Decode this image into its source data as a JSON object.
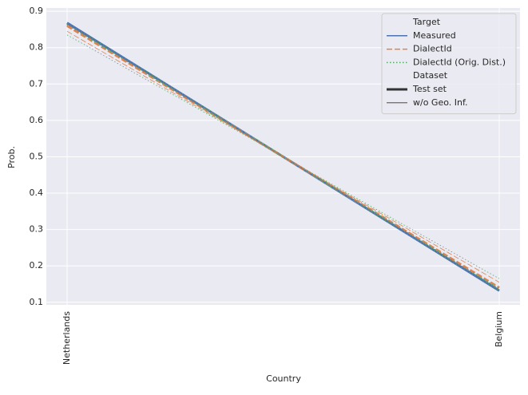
{
  "chart_data": {
    "type": "line",
    "x_label": "Country",
    "y_label": "Prob.",
    "categories": [
      "Netherlands",
      "Belgium"
    ],
    "ylim": [
      0.093,
      0.909
    ],
    "yticks": [
      0.1,
      0.2,
      0.3,
      0.4,
      0.5,
      0.6,
      0.7,
      0.8,
      0.9
    ],
    "grid": true,
    "legend_position": "upper right",
    "hue_title": "Target",
    "style_title": "Dataset",
    "datasets": [
      {
        "name": "Test set",
        "linewidth": 3
      },
      {
        "name": "w/o Geo. Inf.",
        "linewidth": 0.8
      }
    ],
    "series": [
      {
        "name": "Measured",
        "color": "#4c72b0",
        "dash": "solid",
        "values": [
          [
            0.868,
            0.132
          ],
          [
            0.866,
            0.134
          ]
        ]
      },
      {
        "name": "DialectId",
        "color": "#dd8452",
        "dash": "dashed",
        "values": [
          [
            0.86,
            0.14
          ],
          [
            0.845,
            0.155
          ]
        ]
      },
      {
        "name": "DialectId (Orig. Dist.)",
        "color": "#55a868",
        "dash": "dotted",
        "values": [
          [
            0.865,
            0.135
          ],
          [
            0.835,
            0.165
          ]
        ]
      }
    ]
  }
}
